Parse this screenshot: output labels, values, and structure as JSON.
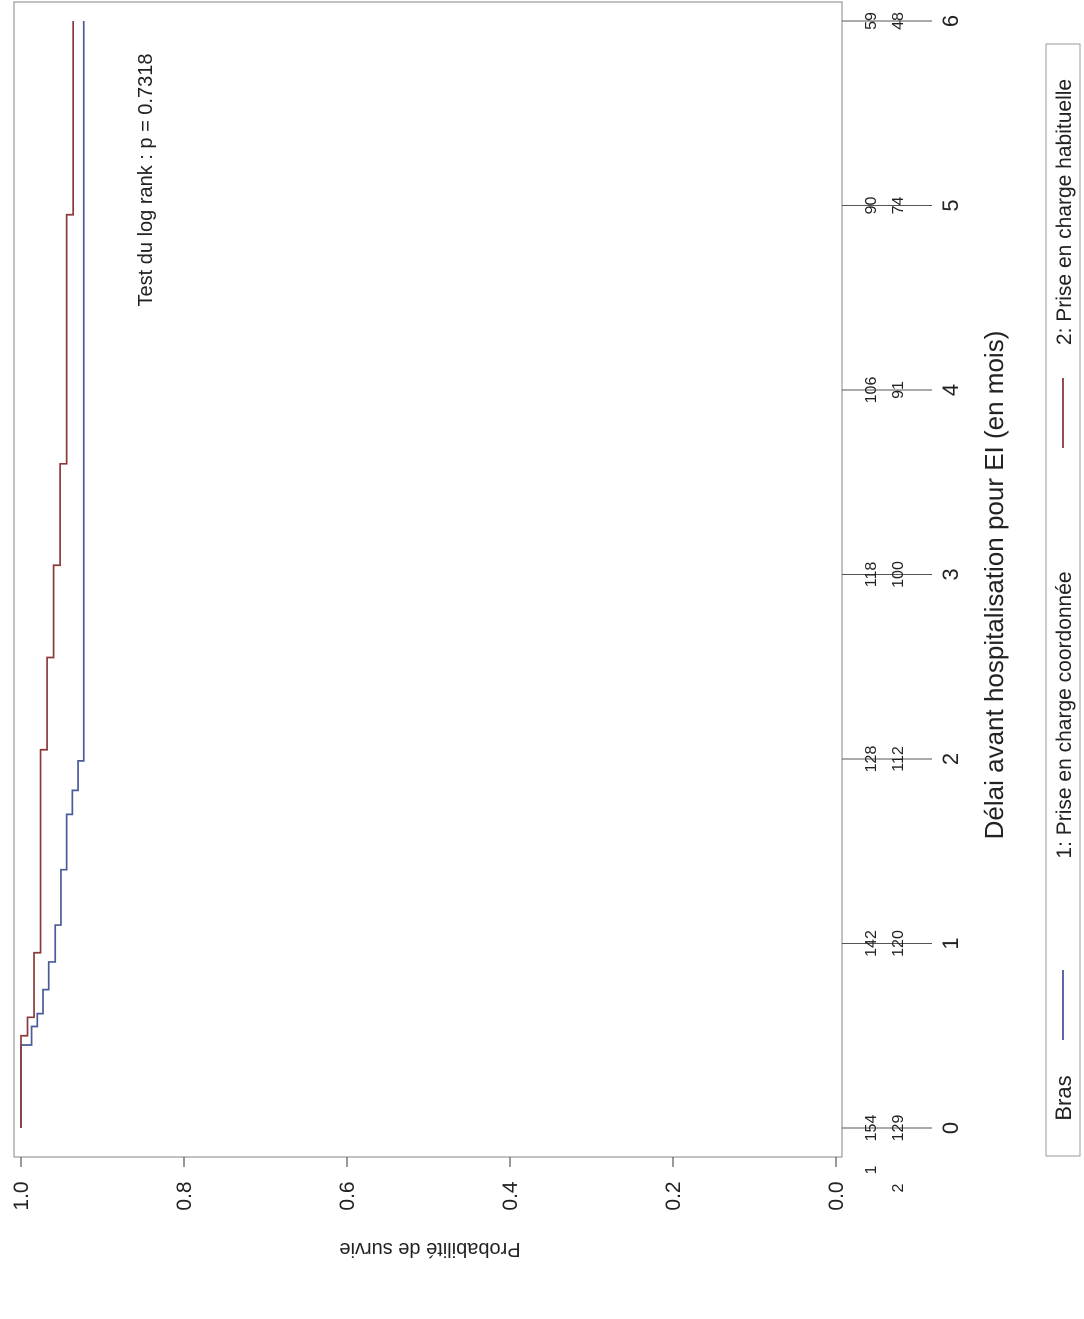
{
  "chart_data": {
    "type": "line",
    "subtype": "kaplan-meier step",
    "orientation": "rotated 90 degrees clockwise",
    "xlabel": "Délai avant hospitalisation pour EI (en mois)",
    "ylabel": "Probabilité de survie",
    "xlim": [
      -0.3,
      6.2
    ],
    "ylim": [
      0.0,
      1.0
    ],
    "x_ticks": [
      "0",
      "1",
      "2",
      "3",
      "4",
      "5",
      "6"
    ],
    "y_ticks": [
      "0.0",
      "0.2",
      "0.4",
      "0.6",
      "0.8",
      "1.0"
    ],
    "annotation": "Test du log rank : p = 0.7318",
    "legend": {
      "title": "Bras",
      "placement": "bottom",
      "entries": [
        "1: Prise en charge coordonnée",
        "2: Prise en charge habituelle"
      ]
    },
    "at_risk": {
      "times": [
        0,
        1,
        2,
        3,
        4,
        5,
        6
      ],
      "groups": [
        {
          "label": "1",
          "counts": [
            "154",
            "142",
            "128",
            "118",
            "106",
            "90",
            "59"
          ]
        },
        {
          "label": "2",
          "counts": [
            "129",
            "120",
            "112",
            "100",
            "91",
            "74",
            "48"
          ]
        }
      ]
    },
    "series": [
      {
        "legend_index": 0,
        "color": "#4a5a9a",
        "steps": [
          [
            0,
            1.0
          ],
          [
            0.45,
            0.987
          ],
          [
            0.55,
            0.98
          ],
          [
            0.62,
            0.973
          ],
          [
            0.75,
            0.966
          ],
          [
            0.9,
            0.958
          ],
          [
            1.1,
            0.951
          ],
          [
            1.4,
            0.944
          ],
          [
            1.7,
            0.937
          ],
          [
            1.83,
            0.93
          ],
          [
            1.99,
            0.923
          ],
          [
            3.45,
            0.923
          ],
          [
            6.0,
            0.923
          ]
        ]
      },
      {
        "legend_index": 1,
        "color": "#8b3a3a",
        "steps": [
          [
            0,
            1.0
          ],
          [
            0.5,
            0.992
          ],
          [
            0.6,
            0.984
          ],
          [
            0.95,
            0.976
          ],
          [
            2.05,
            0.968
          ],
          [
            2.55,
            0.96
          ],
          [
            3.05,
            0.952
          ],
          [
            3.6,
            0.944
          ],
          [
            4.95,
            0.936
          ],
          [
            6.0,
            0.936
          ]
        ]
      }
    ]
  }
}
